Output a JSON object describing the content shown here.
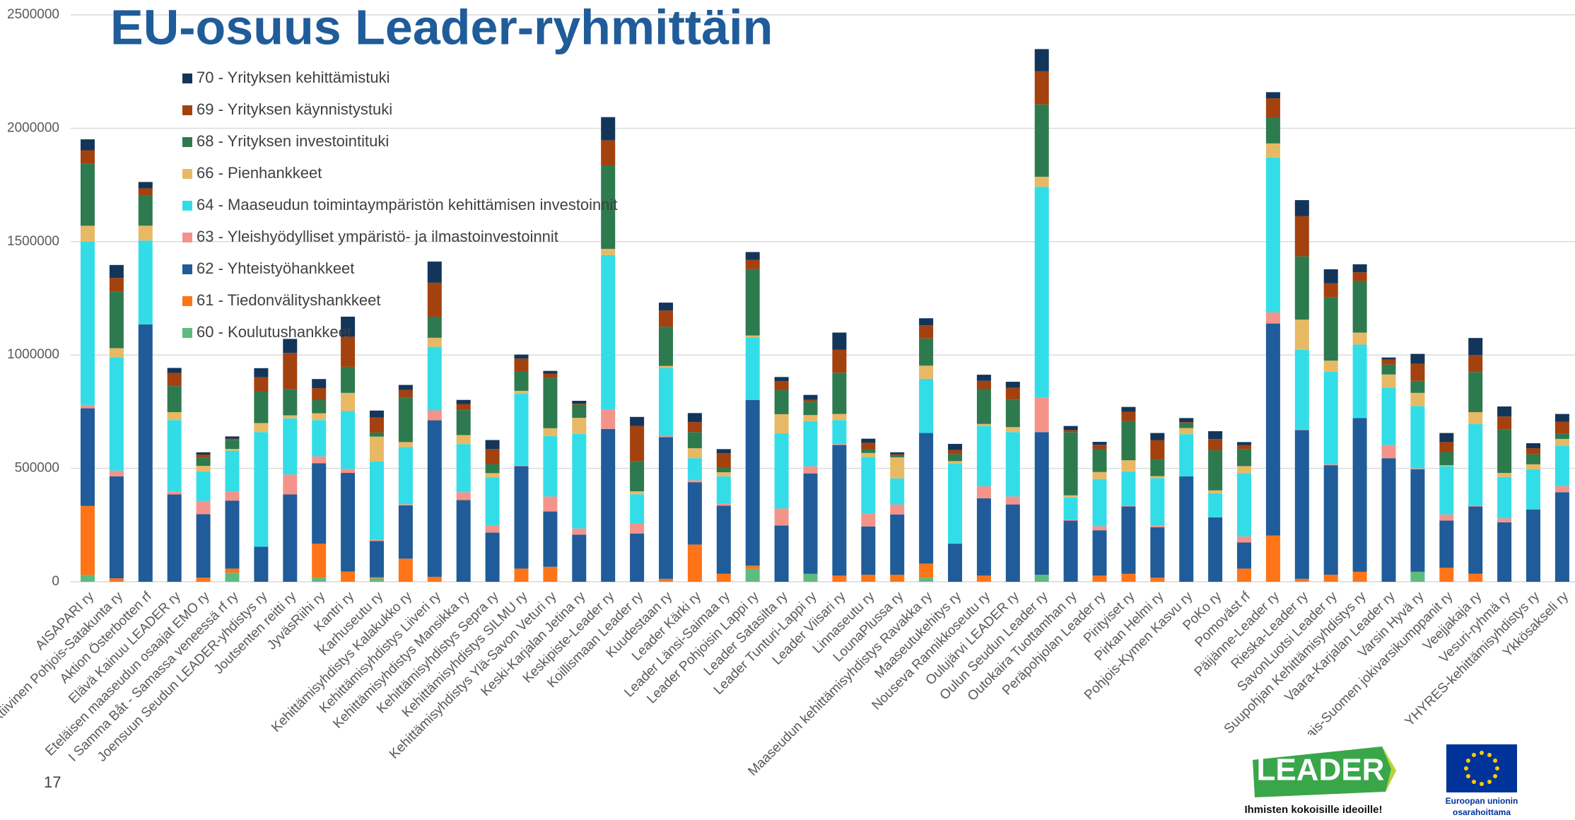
{
  "chart_data": {
    "type": "stacked_bar",
    "title": "EU-osuus Leader-ryhmittäin",
    "categories": [
      "AISAPARI ry",
      "Aktiivinen Pohjois-Satakunta ry",
      "Aktion Österbotten rf",
      "Elävä Kainuu LEADER ry",
      "Eteläisen maaseudun osaajat EMO ry",
      "I Samma Båt - Samassa veneessä rf ry",
      "Joensuun Seudun LEADER-yhdistys ry",
      "Joutsenten reitti ry",
      "JyväsRiihi ry",
      "Kantri ry",
      "Karhuseutu ry",
      "Kehittämisyhdistys Kalakukko ry",
      "Kehittämisyhdistys Liiveri ry",
      "Kehittämisyhdistys Mansikka ry",
      "Kehittämisyhdistys Sepra ry",
      "Kehittämisyhdistys SILMU ry",
      "Kehittämisyhdistys Ylä-Savon Veturi ry",
      "Keski-Karjalan Jetina ry",
      "Keskipiste-Leader ry",
      "Koillismaan Leader ry",
      "Kuudestaan ry",
      "Leader Kärki ry",
      "Leader Länsi-Saimaa ry",
      "Leader Pohjoisin Lappi ry",
      "Leader Satasilta ry",
      "Leader Tunturi-Lappi ry",
      "Leader Viisari ry",
      "Linnaseutu ry",
      "LounaPlussa ry",
      "Maaseudun kehittämisyhdistys Ravakka ry",
      "Maaseutukehitys ry",
      "Nouseva Rannikkoseutu ry",
      "Oulujärvi LEADER ry",
      "Oulun Seudun Leader ry",
      "Outokaira Tuottamhan ry",
      "Peräpohjolan Leader ry",
      "Pirityiset ry",
      "Pirkan Helmi ry",
      "Pohjois-Kymen Kasvu ry",
      "PoKo ry",
      "Pomoväst rf",
      "Päijänne-Leader ry",
      "Rieska-Leader ry",
      "SavonLuotsi Leader ry",
      "Suupohjan Kehittämisyhdistys ry",
      "Vaara-Karjalan Leader ry",
      "Varsin Hyvä ry",
      "Varsinais-Suomen jokivarsikumppanit ry",
      "Veejjakaja ry",
      "Vesuri-ryhmä ry",
      "YHYRES-kehittämisyhdistys ry",
      "Ykkösakseli ry"
    ],
    "series": [
      {
        "name": "60 - Koulutushankkeet",
        "color": "#5dbb7e",
        "values": [
          30000,
          0,
          0,
          0,
          0,
          40000,
          0,
          0,
          18000,
          0,
          15000,
          0,
          0,
          0,
          0,
          0,
          0,
          0,
          0,
          0,
          0,
          0,
          0,
          58000,
          0,
          35000,
          0,
          0,
          0,
          18000,
          0,
          0,
          0,
          31000,
          0,
          0,
          0,
          0,
          0,
          0,
          0,
          0,
          0,
          0,
          0,
          0,
          44000,
          0,
          0,
          0,
          0,
          0
        ]
      },
      {
        "name": "61 - Tiedonvälityshankkeet",
        "color": "#ff7417",
        "values": [
          305000,
          15000,
          0,
          0,
          18000,
          18000,
          0,
          0,
          150000,
          45000,
          5000,
          102000,
          22000,
          0,
          0,
          58000,
          66000,
          0,
          0,
          0,
          13000,
          164000,
          35000,
          13000,
          0,
          0,
          27000,
          31000,
          31000,
          62000,
          0,
          27000,
          0,
          0,
          0,
          27000,
          35000,
          18000,
          0,
          0,
          58000,
          204000,
          13000,
          31000,
          44000,
          0,
          0,
          62000,
          35000,
          0,
          0,
          0
        ]
      },
      {
        "name": "62 - Yhteistyöhankkeet",
        "color": "#1f5c99",
        "values": [
          430000,
          450000,
          1135000,
          385000,
          280000,
          300000,
          155000,
          385000,
          355000,
          435000,
          160000,
          235000,
          690000,
          360000,
          217000,
          452000,
          244000,
          208000,
          674000,
          213000,
          625000,
          275000,
          301000,
          731000,
          248000,
          443000,
          576000,
          213000,
          266000,
          576000,
          168000,
          341000,
          341000,
          629000,
          270000,
          200000,
          297000,
          222000,
          465000,
          284000,
          115000,
          935000,
          656000,
          483000,
          678000,
          545000,
          452000,
          208000,
          297000,
          262000,
          319000,
          395000
        ]
      },
      {
        "name": "63 - Yleishyödylliset ympäristö- ja ilmastoinvestoinnit",
        "color": "#f4938a",
        "values": [
          15000,
          25000,
          0,
          13000,
          58000,
          40000,
          0,
          88000,
          30000,
          18000,
          5000,
          5000,
          44000,
          35000,
          31000,
          4000,
          66000,
          27000,
          84000,
          44000,
          4000,
          9000,
          9000,
          0,
          75000,
          31000,
          4000,
          58000,
          44000,
          0,
          0,
          53000,
          35000,
          151000,
          4000,
          18000,
          4000,
          9000,
          0,
          0,
          27000,
          49000,
          4000,
          4000,
          0,
          58000,
          4000,
          27000,
          4000,
          18000,
          0,
          27000
        ]
      },
      {
        "name": "64 - Maaseudun toimintaympäristön kehittämisen investoinnit",
        "color": "#33dde8",
        "values": [
          720000,
          500000,
          370000,
          315000,
          130000,
          180000,
          505000,
          248000,
          160000,
          255000,
          345000,
          252000,
          280000,
          212000,
          213000,
          315000,
          266000,
          417000,
          683000,
          129000,
          301000,
          97000,
          120000,
          275000,
          332000,
          199000,
          106000,
          248000,
          115000,
          239000,
          355000,
          266000,
          284000,
          931000,
          98000,
          208000,
          151000,
          208000,
          186000,
          106000,
          279000,
          683000,
          350000,
          408000,
          324000,
          253000,
          275000,
          213000,
          359000,
          182000,
          177000,
          177000
        ]
      },
      {
        "name": "66 - Pienhankkeet",
        "color": "#e8b965",
        "values": [
          70000,
          40000,
          65000,
          35000,
          25000,
          8000,
          40000,
          13000,
          30000,
          80000,
          110000,
          22000,
          40000,
          40000,
          18000,
          13000,
          35000,
          71000,
          27000,
          13000,
          9000,
          44000,
          18000,
          9000,
          84000,
          27000,
          27000,
          18000,
          93000,
          58000,
          9000,
          9000,
          22000,
          44000,
          9000,
          31000,
          49000,
          9000,
          27000,
          13000,
          31000,
          62000,
          133000,
          49000,
          53000,
          58000,
          58000,
          4000,
          53000,
          18000,
          22000,
          31000
        ]
      },
      {
        "name": "68 - Yrityksen investointituki",
        "color": "#2e7a4f",
        "values": [
          275000,
          250000,
          135000,
          115000,
          35000,
          40000,
          140000,
          115000,
          58000,
          115000,
          18000,
          195000,
          93000,
          110000,
          40000,
          84000,
          222000,
          58000,
          368000,
          133000,
          173000,
          71000,
          22000,
          293000,
          106000,
          58000,
          182000,
          18000,
          9000,
          120000,
          31000,
          155000,
          120000,
          319000,
          279000,
          102000,
          173000,
          75000,
          22000,
          177000,
          75000,
          115000,
          279000,
          279000,
          226000,
          44000,
          53000,
          58000,
          177000,
          191000,
          44000,
          22000
        ]
      },
      {
        "name": "69 - Yrityksen käynnistystuki",
        "color": "#a3410f",
        "values": [
          58000,
          60000,
          30000,
          58000,
          15000,
          5000,
          62000,
          160000,
          53000,
          133000,
          66000,
          35000,
          150000,
          27000,
          66000,
          58000,
          18000,
          4000,
          111000,
          155000,
          71000,
          44000,
          62000,
          40000,
          40000,
          9000,
          102000,
          27000,
          4000,
          58000,
          18000,
          35000,
          53000,
          146000,
          9000,
          18000,
          40000,
          84000,
          4000,
          49000,
          18000,
          84000,
          177000,
          62000,
          40000,
          22000,
          75000,
          44000,
          75000,
          58000,
          27000,
          53000
        ]
      },
      {
        "name": "70 - Yrityksen kehittämistuki",
        "color": "#13355a",
        "values": [
          48000,
          57000,
          28000,
          22000,
          10000,
          10000,
          40000,
          62000,
          40000,
          88000,
          31000,
          22000,
          93000,
          18000,
          40000,
          18000,
          13000,
          13000,
          102000,
          40000,
          35000,
          40000,
          18000,
          35000,
          18000,
          22000,
          75000,
          18000,
          9000,
          31000,
          27000,
          27000,
          27000,
          98000,
          18000,
          13000,
          22000,
          31000,
          18000,
          35000,
          13000,
          27000,
          71000,
          62000,
          35000,
          9000,
          44000,
          40000,
          75000,
          44000,
          22000,
          35000
        ]
      }
    ],
    "ylim": [
      0,
      2500000
    ],
    "yticks": [
      0,
      500000,
      1000000,
      1500000,
      2000000,
      2500000
    ],
    "grid": true,
    "legend": "upper left",
    "footer": {
      "page_number": 17,
      "leader_logo": "LEADER",
      "leader_slogan": "Ihmisten kokoisille ideoille!",
      "eu_caption": [
        "Euroopan unionin",
        "osarahoittama"
      ]
    }
  }
}
